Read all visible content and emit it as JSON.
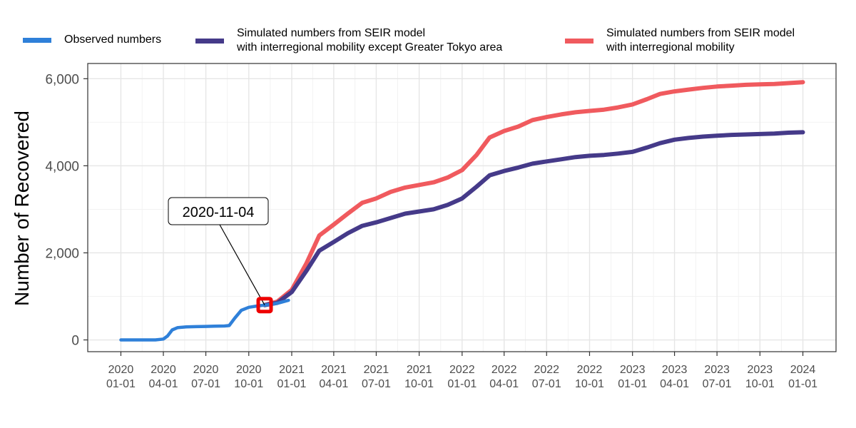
{
  "legend": {
    "items": [
      {
        "label": "Observed numbers",
        "color": "#2f80d9"
      },
      {
        "label": "Simulated numbers from SEIR model\nwith interregional mobility except Greater Tokyo area",
        "color": "#453a89"
      },
      {
        "label": "Simulated numbers from SEIR model\nwith interregional mobility",
        "color": "#f05a5e"
      }
    ]
  },
  "annotation": {
    "label": "2020-11-04",
    "date": "2020-11-04",
    "value": 800,
    "marker_color": "#ee0000"
  },
  "chart_data": {
    "type": "line",
    "xlabel": "",
    "ylabel": "Number of Recovered",
    "xlim": [
      "2019-10-22",
      "2024-03-12"
    ],
    "ylim": [
      -270,
      6350
    ],
    "grid": true,
    "legend_position": "top",
    "x_ticks": [
      {
        "date": "2020-01-01",
        "label": "2020\n01-01"
      },
      {
        "date": "2020-04-01",
        "label": "2020\n04-01"
      },
      {
        "date": "2020-07-01",
        "label": "2020\n07-01"
      },
      {
        "date": "2020-10-01",
        "label": "2020\n10-01"
      },
      {
        "date": "2021-01-01",
        "label": "2021\n01-01"
      },
      {
        "date": "2021-04-01",
        "label": "2021\n04-01"
      },
      {
        "date": "2021-07-01",
        "label": "2021\n07-01"
      },
      {
        "date": "2021-10-01",
        "label": "2021\n10-01"
      },
      {
        "date": "2022-01-01",
        "label": "2022\n01-01"
      },
      {
        "date": "2022-04-01",
        "label": "2022\n04-01"
      },
      {
        "date": "2022-07-01",
        "label": "2022\n07-01"
      },
      {
        "date": "2022-10-01",
        "label": "2022\n10-01"
      },
      {
        "date": "2023-01-01",
        "label": "2023\n01-01"
      },
      {
        "date": "2023-04-01",
        "label": "2023\n04-01"
      },
      {
        "date": "2023-07-01",
        "label": "2023\n07-01"
      },
      {
        "date": "2023-10-01",
        "label": "2023\n10-01"
      },
      {
        "date": "2024-01-01",
        "label": "2024\n01-01"
      }
    ],
    "y_ticks": [
      {
        "value": 0,
        "label": "0"
      },
      {
        "value": 2000,
        "label": "2,000"
      },
      {
        "value": 4000,
        "label": "4,000"
      },
      {
        "value": 6000,
        "label": "6,000"
      }
    ],
    "series": [
      {
        "name": "Observed numbers",
        "color": "#2f80d9",
        "points": [
          [
            "2020-01-01",
            0
          ],
          [
            "2020-03-15",
            0
          ],
          [
            "2020-04-01",
            20
          ],
          [
            "2020-04-10",
            90
          ],
          [
            "2020-04-20",
            230
          ],
          [
            "2020-05-01",
            280
          ],
          [
            "2020-05-20",
            300
          ],
          [
            "2020-06-10",
            305
          ],
          [
            "2020-07-01",
            310
          ],
          [
            "2020-07-20",
            315
          ],
          [
            "2020-08-10",
            320
          ],
          [
            "2020-08-20",
            330
          ],
          [
            "2020-09-01",
            500
          ],
          [
            "2020-09-15",
            680
          ],
          [
            "2020-10-01",
            750
          ],
          [
            "2020-10-20",
            780
          ],
          [
            "2020-11-04",
            800
          ],
          [
            "2020-11-20",
            820
          ],
          [
            "2020-12-05",
            850
          ],
          [
            "2020-12-25",
            910
          ]
        ]
      },
      {
        "name": "Simulated numbers from SEIR model with interregional mobility except Greater Tokyo area",
        "color": "#453a89",
        "points": [
          [
            "2020-11-04",
            800
          ],
          [
            "2020-12-01",
            850
          ],
          [
            "2021-01-01",
            1100
          ],
          [
            "2021-02-01",
            1580
          ],
          [
            "2021-03-01",
            2050
          ],
          [
            "2021-04-01",
            2250
          ],
          [
            "2021-05-01",
            2450
          ],
          [
            "2021-06-01",
            2620
          ],
          [
            "2021-07-01",
            2700
          ],
          [
            "2021-08-01",
            2800
          ],
          [
            "2021-09-01",
            2900
          ],
          [
            "2021-10-01",
            2950
          ],
          [
            "2021-11-01",
            3000
          ],
          [
            "2021-12-01",
            3100
          ],
          [
            "2022-01-01",
            3250
          ],
          [
            "2022-02-01",
            3520
          ],
          [
            "2022-03-01",
            3780
          ],
          [
            "2022-04-01",
            3880
          ],
          [
            "2022-05-01",
            3960
          ],
          [
            "2022-06-01",
            4050
          ],
          [
            "2022-07-01",
            4100
          ],
          [
            "2022-08-01",
            4150
          ],
          [
            "2022-09-01",
            4200
          ],
          [
            "2022-10-01",
            4230
          ],
          [
            "2022-11-01",
            4250
          ],
          [
            "2022-12-01",
            4280
          ],
          [
            "2023-01-01",
            4320
          ],
          [
            "2023-02-01",
            4420
          ],
          [
            "2023-03-01",
            4520
          ],
          [
            "2023-04-01",
            4600
          ],
          [
            "2023-05-01",
            4640
          ],
          [
            "2023-06-01",
            4670
          ],
          [
            "2023-07-01",
            4690
          ],
          [
            "2023-08-01",
            4710
          ],
          [
            "2023-09-01",
            4720
          ],
          [
            "2023-10-01",
            4730
          ],
          [
            "2023-11-01",
            4740
          ],
          [
            "2023-12-01",
            4760
          ],
          [
            "2024-01-01",
            4770
          ]
        ]
      },
      {
        "name": "Simulated numbers from SEIR model with interregional mobility",
        "color": "#f05a5e",
        "points": [
          [
            "2020-11-04",
            800
          ],
          [
            "2020-12-01",
            880
          ],
          [
            "2021-01-01",
            1150
          ],
          [
            "2021-02-01",
            1750
          ],
          [
            "2021-03-01",
            2400
          ],
          [
            "2021-04-01",
            2650
          ],
          [
            "2021-05-01",
            2900
          ],
          [
            "2021-06-01",
            3150
          ],
          [
            "2021-07-01",
            3250
          ],
          [
            "2021-08-01",
            3400
          ],
          [
            "2021-09-01",
            3500
          ],
          [
            "2021-10-01",
            3560
          ],
          [
            "2021-11-01",
            3620
          ],
          [
            "2021-12-01",
            3730
          ],
          [
            "2022-01-01",
            3900
          ],
          [
            "2022-02-01",
            4250
          ],
          [
            "2022-03-01",
            4650
          ],
          [
            "2022-04-01",
            4800
          ],
          [
            "2022-05-01",
            4900
          ],
          [
            "2022-06-01",
            5050
          ],
          [
            "2022-07-01",
            5120
          ],
          [
            "2022-08-01",
            5180
          ],
          [
            "2022-09-01",
            5230
          ],
          [
            "2022-10-01",
            5260
          ],
          [
            "2022-11-01",
            5290
          ],
          [
            "2022-12-01",
            5340
          ],
          [
            "2023-01-01",
            5410
          ],
          [
            "2023-02-01",
            5530
          ],
          [
            "2023-03-01",
            5650
          ],
          [
            "2023-04-01",
            5710
          ],
          [
            "2023-05-01",
            5750
          ],
          [
            "2023-06-01",
            5790
          ],
          [
            "2023-07-01",
            5820
          ],
          [
            "2023-08-01",
            5840
          ],
          [
            "2023-09-01",
            5860
          ],
          [
            "2023-10-01",
            5870
          ],
          [
            "2023-11-01",
            5880
          ],
          [
            "2023-12-01",
            5900
          ],
          [
            "2024-01-01",
            5920
          ]
        ]
      }
    ]
  }
}
